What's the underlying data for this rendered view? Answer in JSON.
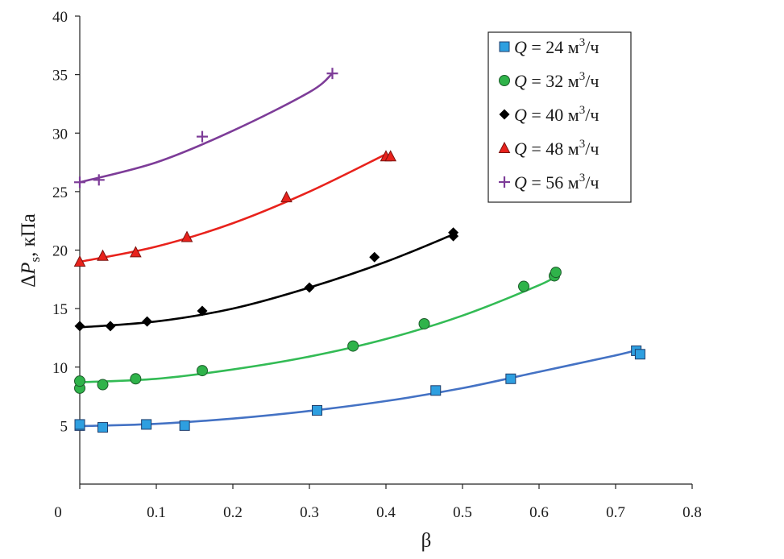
{
  "chart_data": {
    "type": "scatter",
    "title": "",
    "xlabel": "β",
    "ylabel_parts": {
      "delta": "Δ",
      "var": "P",
      "sub": "s",
      "unit": ", кПа"
    },
    "xlim": [
      0,
      0.8
    ],
    "ylim": [
      0,
      40
    ],
    "xticks": [
      "0",
      "0.1",
      "0.2",
      "0.3",
      "0.4",
      "0.5",
      "0.6",
      "0.7",
      "0.8"
    ],
    "yticks": [
      "5",
      "10",
      "15",
      "20",
      "25",
      "30",
      "35",
      "40"
    ],
    "grid": false,
    "legend_position": "top-right",
    "series": [
      {
        "name": "Q = 24 м3/ч",
        "label": {
          "q": "Q",
          "value": " = 24 м",
          "sup": "3",
          "unit": "/ч"
        },
        "marker": "square",
        "marker_color": "#2e9fe0",
        "line_color": "#4472c4",
        "points": [
          [
            0,
            5.0
          ],
          [
            0,
            5.1
          ],
          [
            0.03,
            4.85
          ],
          [
            0.087,
            5.1
          ],
          [
            0.137,
            5.0
          ],
          [
            0.31,
            6.3
          ],
          [
            0.465,
            8.0
          ],
          [
            0.563,
            9.0
          ],
          [
            0.727,
            11.4
          ],
          [
            0.732,
            11.1
          ]
        ],
        "fit": [
          [
            0,
            4.95
          ],
          [
            0.1,
            5.15
          ],
          [
            0.2,
            5.6
          ],
          [
            0.3,
            6.25
          ],
          [
            0.4,
            7.1
          ],
          [
            0.5,
            8.2
          ],
          [
            0.6,
            9.6
          ],
          [
            0.7,
            11.0
          ],
          [
            0.73,
            11.5
          ]
        ]
      },
      {
        "name": "Q = 32 м3/ч",
        "label": {
          "q": "Q",
          "value": " = 32 м",
          "sup": "3",
          "unit": "/ч"
        },
        "marker": "circle",
        "marker_color": "#2fb34a",
        "line_color": "#33bb55",
        "points": [
          [
            0,
            8.2
          ],
          [
            0,
            8.8
          ],
          [
            0.03,
            8.5
          ],
          [
            0.073,
            9.0
          ],
          [
            0.16,
            9.7
          ],
          [
            0.357,
            11.8
          ],
          [
            0.45,
            13.7
          ],
          [
            0.58,
            16.9
          ],
          [
            0.62,
            17.8
          ],
          [
            0.622,
            18.1
          ]
        ],
        "fit": [
          [
            0,
            8.7
          ],
          [
            0.1,
            9.0
          ],
          [
            0.2,
            9.8
          ],
          [
            0.3,
            10.9
          ],
          [
            0.4,
            12.4
          ],
          [
            0.5,
            14.4
          ],
          [
            0.6,
            17.0
          ],
          [
            0.625,
            17.9
          ]
        ]
      },
      {
        "name": "Q = 40 м3/ч",
        "label": {
          "q": "Q",
          "value": " = 40 м",
          "sup": "3",
          "unit": "/ч"
        },
        "marker": "diamond",
        "marker_color": "#000000",
        "line_color": "#000000",
        "points": [
          [
            0,
            13.5
          ],
          [
            0.04,
            13.5
          ],
          [
            0.088,
            13.9
          ],
          [
            0.16,
            14.8
          ],
          [
            0.3,
            16.8
          ],
          [
            0.385,
            19.4
          ],
          [
            0.488,
            21.2
          ],
          [
            0.488,
            21.5
          ]
        ],
        "fit": [
          [
            0,
            13.4
          ],
          [
            0.1,
            13.9
          ],
          [
            0.2,
            15.0
          ],
          [
            0.3,
            16.8
          ],
          [
            0.4,
            19.0
          ],
          [
            0.49,
            21.4
          ]
        ]
      },
      {
        "name": "Q = 48 м3/ч",
        "label": {
          "q": "Q",
          "value": " = 48 м",
          "sup": "3",
          "unit": "/ч"
        },
        "marker": "triangle",
        "marker_color": "#e8221c",
        "line_color": "#e8221c",
        "points": [
          [
            0,
            19.0
          ],
          [
            0.03,
            19.5
          ],
          [
            0.073,
            19.8
          ],
          [
            0.14,
            21.1
          ],
          [
            0.27,
            24.5
          ],
          [
            0.4,
            28.0
          ],
          [
            0.406,
            28.0
          ]
        ],
        "fit": [
          [
            0,
            19.0
          ],
          [
            0.1,
            20.3
          ],
          [
            0.2,
            22.3
          ],
          [
            0.3,
            25.0
          ],
          [
            0.4,
            28.2
          ]
        ]
      },
      {
        "name": "Q = 56 м3/ч",
        "label": {
          "q": "Q",
          "value": " = 56 м",
          "sup": "3",
          "unit": "/ч"
        },
        "marker": "plus",
        "marker_color": "#7d3c98",
        "line_color": "#7d3c98",
        "points": [
          [
            0,
            25.8
          ],
          [
            0.025,
            26.0
          ],
          [
            0.16,
            29.7
          ],
          [
            0.33,
            35.1
          ]
        ],
        "fit": [
          [
            0,
            25.8
          ],
          [
            0.1,
            27.5
          ],
          [
            0.2,
            30.2
          ],
          [
            0.3,
            33.5
          ],
          [
            0.33,
            35.1
          ]
        ]
      }
    ]
  }
}
